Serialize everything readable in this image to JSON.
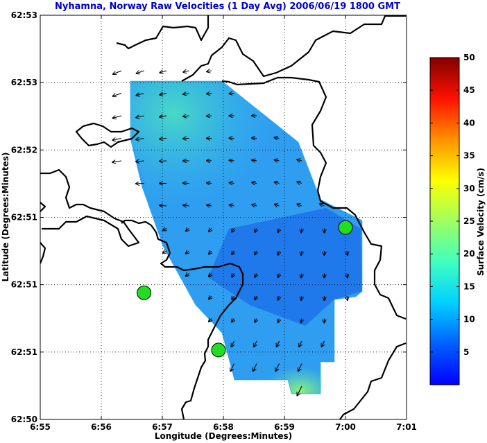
{
  "chart_data": {
    "type": "heatmap",
    "title": "Nyhamna, Norway Raw Velocities (1 Day Avg) 2006/06/19 1800 GMT",
    "xlabel": "Longitude (Degrees:Minutes)",
    "ylabel": "Latitude (Degrees:Minutes)",
    "x_tick_labels": [
      "6:55",
      "6:56",
      "6:57",
      "6:58",
      "6:59",
      "7:00",
      "7:01"
    ],
    "y_tick_labels": [
      "62:53",
      "62:53",
      "62:52",
      "62:51",
      "62:51",
      "62:51",
      "62:50"
    ],
    "grid": true,
    "colorbar": {
      "label": "Surface Velocity (cm/s)",
      "range": [
        0,
        50
      ],
      "tick_labels": [
        "5",
        "10",
        "15",
        "20",
        "25",
        "30",
        "35",
        "40",
        "45",
        "50"
      ]
    },
    "stations": [
      {
        "lon_min": 56.7,
        "lat_index": 4.12
      },
      {
        "lon_min": 57.92,
        "lat_index": 4.97
      },
      {
        "lon_min": 60.0,
        "lat_index": 3.15
      }
    ]
  },
  "colors": {
    "title": "#0000cc",
    "station": "#22dd22",
    "coast": "#000000",
    "arrow": "#000000"
  }
}
